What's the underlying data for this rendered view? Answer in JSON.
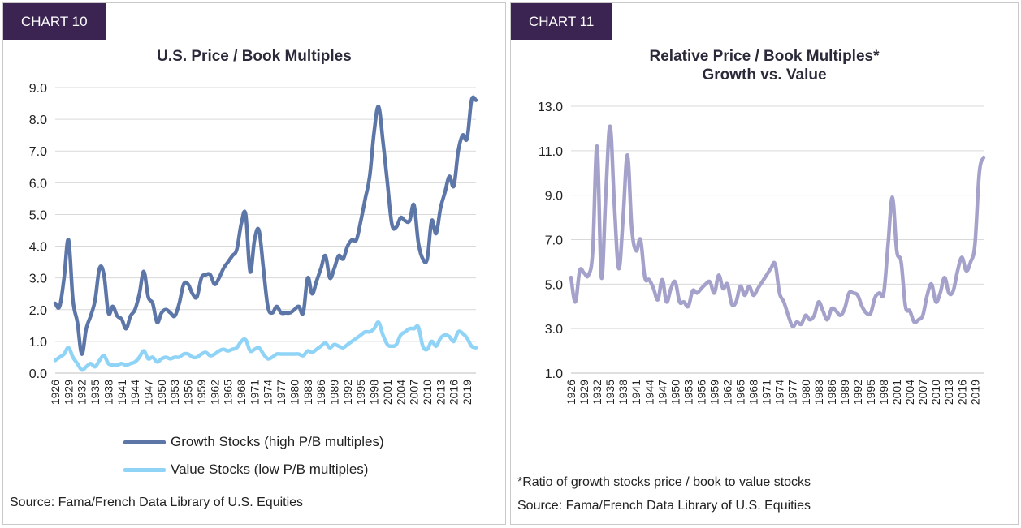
{
  "chart10": {
    "tag": "CHART 10",
    "title": "U.S. Price / Book Multiples",
    "legend_growth": "Growth Stocks (high P/B multiples)",
    "legend_value": "Value Stocks (low P/B multiples)",
    "source": "Source: Fama/French Data Library of U.S. Equities"
  },
  "chart11": {
    "tag": "CHART 11",
    "title_line1": "Relative Price / Book Multiples*",
    "title_line2": "Growth vs. Value",
    "footnote": "*Ratio of growth stocks price / book to value stocks",
    "source": "Source: Fama/French Data Library of U.S. Equities"
  },
  "colors": {
    "growth": "#5d76a8",
    "value": "#8fd3f7",
    "ratio": "#a4a2cb",
    "tag_bg": "#3b2452"
  },
  "chart_data": [
    {
      "type": "line",
      "title": "U.S. Price / Book Multiples",
      "ylim": [
        0,
        9
      ],
      "yticks": [
        "0.0",
        "1.0",
        "2.0",
        "3.0",
        "4.0",
        "5.0",
        "6.0",
        "7.0",
        "8.0",
        "9.0"
      ],
      "xlim": [
        1926,
        2021
      ],
      "xtick_labels": [
        "1926",
        "1929",
        "1932",
        "1935",
        "1938",
        "1941",
        "1944",
        "1947",
        "1950",
        "1953",
        "1956",
        "1959",
        "1962",
        "1965",
        "1968",
        "1971",
        "1974",
        "1977",
        "1980",
        "1983",
        "1986",
        "1989",
        "1992",
        "1995",
        "1998",
        "2001",
        "2004",
        "2007",
        "2010",
        "2013",
        "2016",
        "2019"
      ],
      "legend": "bottom",
      "series": [
        {
          "name": "Growth Stocks (high P/B multiples)",
          "x": [
            1926,
            1927,
            1928,
            1929,
            1930,
            1931,
            1932,
            1933,
            1934,
            1935,
            1936,
            1937,
            1938,
            1939,
            1940,
            1941,
            1942,
            1943,
            1944,
            1945,
            1946,
            1947,
            1948,
            1949,
            1950,
            1951,
            1952,
            1953,
            1954,
            1955,
            1956,
            1957,
            1958,
            1959,
            1960,
            1961,
            1962,
            1963,
            1964,
            1965,
            1966,
            1967,
            1968,
            1969,
            1970,
            1971,
            1972,
            1973,
            1974,
            1975,
            1976,
            1977,
            1978,
            1979,
            1980,
            1981,
            1982,
            1983,
            1984,
            1985,
            1986,
            1987,
            1988,
            1989,
            1990,
            1991,
            1992,
            1993,
            1994,
            1995,
            1996,
            1997,
            1998,
            1999,
            2000,
            2001,
            2002,
            2003,
            2004,
            2005,
            2006,
            2007,
            2008,
            2009,
            2010,
            2011,
            2012,
            2013,
            2014,
            2015,
            2016,
            2017,
            2018,
            2019,
            2020,
            2021
          ],
          "values": [
            2.2,
            2.1,
            3.0,
            4.2,
            2.3,
            1.6,
            0.6,
            1.4,
            1.8,
            2.3,
            3.3,
            3.1,
            1.9,
            2.1,
            1.8,
            1.7,
            1.4,
            1.8,
            2.0,
            2.5,
            3.2,
            2.4,
            2.2,
            1.6,
            1.9,
            2.0,
            1.9,
            1.8,
            2.2,
            2.8,
            2.8,
            2.5,
            2.4,
            3.0,
            3.1,
            3.1,
            2.8,
            3.0,
            3.3,
            3.5,
            3.7,
            3.9,
            4.7,
            5.0,
            3.2,
            4.2,
            4.5,
            3.3,
            2.1,
            1.9,
            2.1,
            1.9,
            1.9,
            1.9,
            2.0,
            2.1,
            1.9,
            3.0,
            2.5,
            2.9,
            3.3,
            3.7,
            3.0,
            3.3,
            3.7,
            3.6,
            4.0,
            4.2,
            4.2,
            4.8,
            5.5,
            6.2,
            7.6,
            8.4,
            7.3,
            6.0,
            4.7,
            4.6,
            4.9,
            4.8,
            4.8,
            5.3,
            4.1,
            3.6,
            3.6,
            4.8,
            4.4,
            5.2,
            5.7,
            6.2,
            5.9,
            7.0,
            7.5,
            7.4,
            8.6,
            8.6
          ]
        },
        {
          "name": "Value Stocks (low P/B multiples)",
          "x": [
            1926,
            1927,
            1928,
            1929,
            1930,
            1931,
            1932,
            1933,
            1934,
            1935,
            1936,
            1937,
            1938,
            1939,
            1940,
            1941,
            1942,
            1943,
            1944,
            1945,
            1946,
            1947,
            1948,
            1949,
            1950,
            1951,
            1952,
            1953,
            1954,
            1955,
            1956,
            1957,
            1958,
            1959,
            1960,
            1961,
            1962,
            1963,
            1964,
            1965,
            1966,
            1967,
            1968,
            1969,
            1970,
            1971,
            1972,
            1973,
            1974,
            1975,
            1976,
            1977,
            1978,
            1979,
            1980,
            1981,
            1982,
            1983,
            1984,
            1985,
            1986,
            1987,
            1988,
            1989,
            1990,
            1991,
            1992,
            1993,
            1994,
            1995,
            1996,
            1997,
            1998,
            1999,
            2000,
            2001,
            2002,
            2003,
            2004,
            2005,
            2006,
            2007,
            2008,
            2009,
            2010,
            2011,
            2012,
            2013,
            2014,
            2015,
            2016,
            2017,
            2018,
            2019,
            2020,
            2021
          ],
          "values": [
            0.4,
            0.5,
            0.6,
            0.8,
            0.5,
            0.3,
            0.1,
            0.2,
            0.3,
            0.2,
            0.4,
            0.55,
            0.3,
            0.25,
            0.25,
            0.3,
            0.25,
            0.3,
            0.35,
            0.5,
            0.7,
            0.45,
            0.5,
            0.35,
            0.45,
            0.5,
            0.45,
            0.5,
            0.5,
            0.6,
            0.6,
            0.5,
            0.5,
            0.6,
            0.65,
            0.55,
            0.6,
            0.7,
            0.75,
            0.7,
            0.75,
            0.8,
            1.0,
            1.05,
            0.7,
            0.75,
            0.8,
            0.6,
            0.45,
            0.5,
            0.6,
            0.6,
            0.6,
            0.6,
            0.6,
            0.6,
            0.55,
            0.7,
            0.65,
            0.75,
            0.85,
            0.95,
            0.8,
            0.9,
            0.85,
            0.8,
            0.9,
            1.0,
            1.1,
            1.2,
            1.3,
            1.3,
            1.4,
            1.6,
            1.2,
            0.9,
            0.85,
            0.9,
            1.2,
            1.3,
            1.4,
            1.4,
            1.45,
            0.85,
            0.75,
            1.0,
            0.85,
            1.1,
            1.2,
            1.15,
            1.0,
            1.3,
            1.25,
            1.1,
            0.85,
            0.8
          ]
        }
      ]
    },
    {
      "type": "line",
      "title": "Relative Price / Book Multiples* Growth vs. Value",
      "ylim": [
        1,
        13
      ],
      "yticks": [
        "1.0",
        "3.0",
        "5.0",
        "7.0",
        "9.0",
        "11.0",
        "13.0"
      ],
      "xlim": [
        1926,
        2021
      ],
      "xtick_labels": [
        "1926",
        "1929",
        "1932",
        "1935",
        "1938",
        "1941",
        "1944",
        "1947",
        "1950",
        "1953",
        "1956",
        "1959",
        "1962",
        "1965",
        "1968",
        "1971",
        "1974",
        "1977",
        "1980",
        "1983",
        "1986",
        "1989",
        "1992",
        "1995",
        "1998",
        "2001",
        "2004",
        "2007",
        "2010",
        "2013",
        "2016",
        "2019"
      ],
      "series": [
        {
          "name": "",
          "x": [
            1926,
            1927,
            1928,
            1929,
            1930,
            1931,
            1932,
            1933,
            1934,
            1935,
            1936,
            1937,
            1938,
            1939,
            1940,
            1941,
            1942,
            1943,
            1944,
            1945,
            1946,
            1947,
            1948,
            1949,
            1950,
            1951,
            1952,
            1953,
            1954,
            1955,
            1956,
            1957,
            1958,
            1959,
            1960,
            1961,
            1962,
            1963,
            1964,
            1965,
            1966,
            1967,
            1968,
            1969,
            1970,
            1971,
            1972,
            1973,
            1974,
            1975,
            1976,
            1977,
            1978,
            1979,
            1980,
            1981,
            1982,
            1983,
            1984,
            1985,
            1986,
            1987,
            1988,
            1989,
            1990,
            1991,
            1992,
            1993,
            1994,
            1995,
            1996,
            1997,
            1998,
            1999,
            2000,
            2001,
            2002,
            2003,
            2004,
            2005,
            2006,
            2007,
            2008,
            2009,
            2010,
            2011,
            2012,
            2013,
            2014,
            2015,
            2016,
            2017,
            2018,
            2019,
            2020,
            2021
          ],
          "values": [
            5.3,
            4.2,
            5.6,
            5.5,
            5.4,
            6.5,
            11.2,
            5.3,
            9.0,
            12.1,
            8.5,
            5.7,
            8.0,
            10.8,
            7.5,
            6.5,
            7.0,
            5.3,
            5.2,
            4.8,
            4.3,
            5.2,
            4.2,
            4.8,
            5.1,
            4.2,
            4.2,
            4.0,
            4.7,
            4.6,
            4.8,
            5.0,
            5.1,
            4.6,
            5.4,
            4.8,
            5.0,
            4.1,
            4.2,
            4.9,
            4.5,
            4.9,
            4.5,
            4.8,
            5.1,
            5.4,
            5.7,
            5.9,
            4.6,
            4.2,
            3.6,
            3.1,
            3.3,
            3.2,
            3.6,
            3.4,
            3.6,
            4.2,
            3.8,
            3.4,
            3.9,
            3.8,
            3.6,
            3.9,
            4.6,
            4.6,
            4.5,
            4.0,
            3.7,
            3.7,
            4.4,
            4.6,
            4.6,
            6.8,
            8.9,
            6.5,
            6.0,
            4.0,
            3.8,
            3.3,
            3.4,
            3.6,
            4.5,
            5.0,
            4.2,
            4.6,
            5.3,
            4.6,
            4.7,
            5.6,
            6.2,
            5.6,
            6.0,
            6.8,
            10.0,
            10.7
          ]
        }
      ]
    }
  ]
}
